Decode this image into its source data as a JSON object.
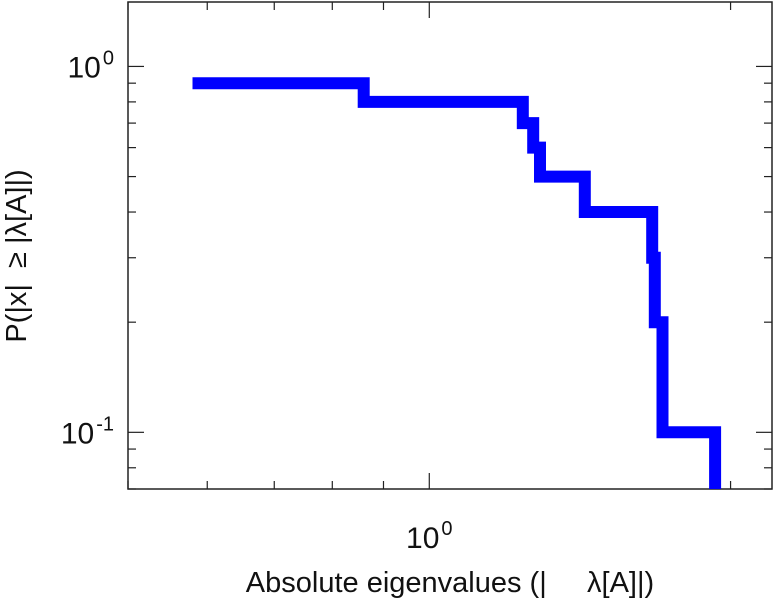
{
  "chart_data": {
    "type": "line",
    "subtype": "step",
    "title": "",
    "xlabel": "Absolute eigenvalues (|     λ[A]|)",
    "ylabel": "P(|x|  ≥ |λ[A]|)",
    "x_scale": "log",
    "y_scale": "log",
    "xlim": [
      0.5,
      2.2
    ],
    "ylim": [
      0.07,
      1.5
    ],
    "x_major_ticks": [
      {
        "value": 1,
        "base": "10",
        "exp": "0"
      }
    ],
    "y_major_ticks": [
      {
        "value": 1,
        "base": "10",
        "exp": "0"
      },
      {
        "value": 0.1,
        "base": "10",
        "exp": "-1"
      }
    ],
    "grid": false,
    "line_color": "#0000ff",
    "series": [
      {
        "x": [
          0.58,
          0.86,
          0.86,
          1.24,
          1.24,
          1.27,
          1.27,
          1.29,
          1.29,
          1.43,
          1.43,
          1.67,
          1.67,
          1.68,
          1.68,
          1.71,
          1.71,
          1.93,
          1.93
        ],
        "y": [
          0.9,
          0.9,
          0.8,
          0.8,
          0.7,
          0.7,
          0.6,
          0.6,
          0.5,
          0.5,
          0.4,
          0.4,
          0.3,
          0.3,
          0.2,
          0.2,
          0.1,
          0.1,
          0.07
        ]
      }
    ]
  }
}
